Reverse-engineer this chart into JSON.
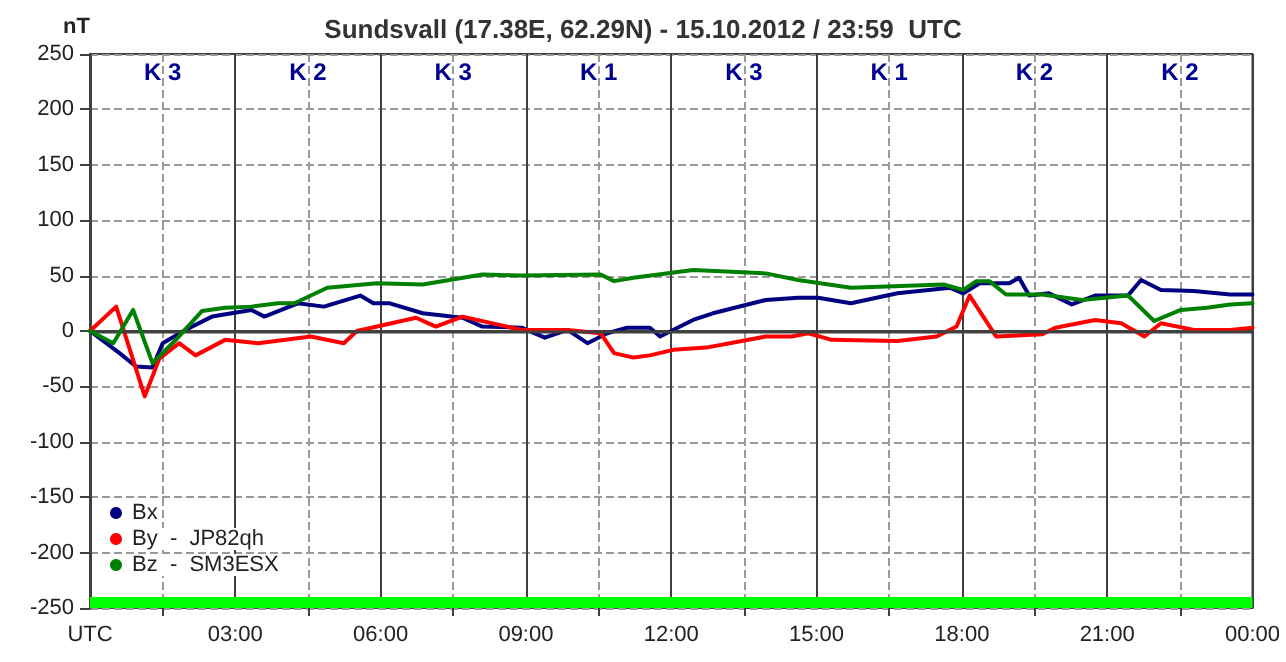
{
  "chart_data": {
    "type": "line",
    "title": "Sundsvall (17.38E, 62.29N) - 15.10.2012 / 23:59  UTC",
    "ylabel": "nT",
    "xlim": [
      0,
      24
    ],
    "xticks": [
      {
        "value": 0,
        "label": "UTC"
      },
      {
        "value": 1.5,
        "label": null
      },
      {
        "value": 3,
        "label": "03:00"
      },
      {
        "value": 4.5,
        "label": null
      },
      {
        "value": 6,
        "label": "06:00"
      },
      {
        "value": 7.5,
        "label": null
      },
      {
        "value": 9,
        "label": "09:00"
      },
      {
        "value": 10.5,
        "label": null
      },
      {
        "value": 12,
        "label": "12:00"
      },
      {
        "value": 13.5,
        "label": null
      },
      {
        "value": 15,
        "label": "15:00"
      },
      {
        "value": 16.5,
        "label": null
      },
      {
        "value": 18,
        "label": "18:00"
      },
      {
        "value": 19.5,
        "label": null
      },
      {
        "value": 21,
        "label": "21:00"
      },
      {
        "value": 22.5,
        "label": null
      },
      {
        "value": 24,
        "label": "00:00"
      }
    ],
    "ylim": [
      -250,
      250
    ],
    "yticks": [
      -250,
      -200,
      -150,
      -100,
      -50,
      0,
      50,
      100,
      150,
      200,
      250
    ],
    "grid": true,
    "legend": "bottom left",
    "marker": "none",
    "line_style": "solid",
    "ref_lines": [
      {
        "axis": "y",
        "value": 0,
        "color": "#404040",
        "line_style": "solid"
      }
    ],
    "bands": [
      {
        "axis": "y",
        "from": -250,
        "to": -240,
        "color": "#00ff00"
      }
    ],
    "annotations": [
      "K 3",
      "K 2",
      "K 3",
      "K 1",
      "K 3",
      "K 1",
      "K 2",
      "K 2"
    ],
    "series": [
      {
        "name": "Bx",
        "color": "#000080",
        "x": [
          0,
          0.61,
          0.95,
          1.29,
          1.5,
          1.97,
          2.52,
          3.33,
          3.6,
          4.29,
          4.83,
          5.58,
          5.85,
          6.19,
          6.87,
          7.69,
          8.1,
          8.91,
          9.39,
          9.86,
          10.27,
          10.68,
          11.09,
          11.56,
          11.77,
          12.45,
          12.86,
          13.95,
          14.62,
          15.03,
          15.71,
          16.67,
          17.76,
          18.03,
          18.37,
          18.98,
          19.18,
          19.39,
          19.8,
          20.27,
          20.75,
          21.43,
          21.7,
          22.11,
          22.79,
          23.54,
          24
        ],
        "values": [
          0,
          -20,
          -32,
          -33,
          -11,
          1,
          13,
          19,
          13,
          25,
          22,
          32,
          25,
          25,
          16,
          12,
          4,
          3,
          -6,
          1,
          -11,
          -2,
          3,
          3,
          -5,
          10,
          16,
          28,
          30,
          30,
          25,
          34,
          39,
          34,
          43,
          43,
          48,
          32,
          34,
          24,
          32,
          32,
          46,
          37,
          36,
          33,
          33
        ]
      },
      {
        "name": "By  -  JP82qh",
        "color": "#ff0000",
        "x": [
          0,
          0.54,
          1.13,
          1.43,
          1.84,
          2.18,
          2.79,
          3.47,
          4.56,
          5.24,
          5.51,
          6.73,
          7.14,
          7.69,
          8.91,
          9.86,
          10.54,
          10.82,
          11.22,
          11.56,
          12.04,
          12.72,
          13.95,
          14.49,
          14.83,
          15.31,
          16.67,
          17.48,
          17.89,
          18.16,
          18.71,
          19.66,
          19.93,
          20.75,
          21.29,
          21.77,
          22.11,
          22.79,
          23.54,
          24
        ],
        "values": [
          0,
          22,
          -59,
          -25,
          -11,
          -22,
          -8,
          -11,
          -5,
          -11,
          0,
          12,
          4,
          13,
          1,
          1,
          -2,
          -20,
          -24,
          -22,
          -17,
          -15,
          -5,
          -5,
          -2,
          -8,
          -9,
          -5,
          4,
          32,
          -5,
          -3,
          3,
          10,
          7,
          -5,
          7,
          1,
          1,
          3
        ]
      },
      {
        "name": "Bz  -  SM3ESX",
        "color": "#008000",
        "x": [
          0,
          0.48,
          0.89,
          1.29,
          1.77,
          2.31,
          2.79,
          3.33,
          3.88,
          4.22,
          4.9,
          5.92,
          6.87,
          8.1,
          8.91,
          10.54,
          10.82,
          11.22,
          12.45,
          13.95,
          14.62,
          15.71,
          17.62,
          18.03,
          18.3,
          18.57,
          18.91,
          19.66,
          20.48,
          21.43,
          21.97,
          22.52,
          23.06,
          23.54,
          24
        ],
        "values": [
          0,
          -11,
          19,
          -29,
          -8,
          18,
          21,
          22,
          25,
          25,
          39,
          43,
          42,
          51,
          50,
          51,
          45,
          48,
          55,
          52,
          46,
          39,
          42,
          37,
          45,
          45,
          33,
          33,
          28,
          32,
          9,
          19,
          21,
          24,
          25
        ]
      }
    ]
  }
}
